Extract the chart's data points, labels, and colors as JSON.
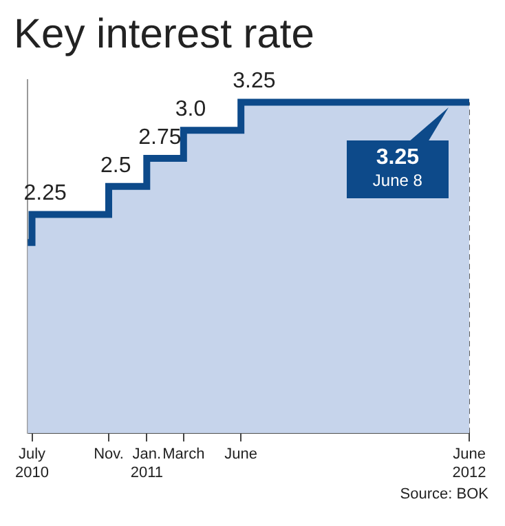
{
  "chart_data": {
    "type": "step",
    "title": "Key interest rate",
    "x": [
      "2010-06-24",
      "2010-07",
      "2010-11",
      "2011-01",
      "2011-03",
      "2011-06",
      "2012-06"
    ],
    "series": [
      {
        "color": "#0d4a8a",
        "values": [
          2.0,
          2.25,
          2.5,
          2.75,
          3.0,
          3.25,
          3.25
        ],
        "value_labels": [
          null,
          "2.25",
          "2.5",
          "2.75",
          "3.0",
          "3.25",
          null
        ]
      }
    ],
    "xlim": [
      "2010-06-24",
      "2012-06"
    ],
    "xticks": [
      {
        "value": "2010-07",
        "label": "July\n2010"
      },
      {
        "value": "2010-11",
        "label": "Nov."
      },
      {
        "value": "2011-01",
        "label": "Jan.\n2011"
      },
      {
        "value": "2011-03",
        "label": "March"
      },
      {
        "value": "2011-06",
        "label": "June"
      },
      {
        "value": "2012-06",
        "label": "June\n2012"
      }
    ],
    "ylim": [
      0.3,
      3.45
    ],
    "legend": false,
    "annotations": [
      {
        "text": "3.25\nJune 8",
        "x": "2012-05",
        "y": 3.25
      },
      "Source: BOK"
    ]
  }
}
